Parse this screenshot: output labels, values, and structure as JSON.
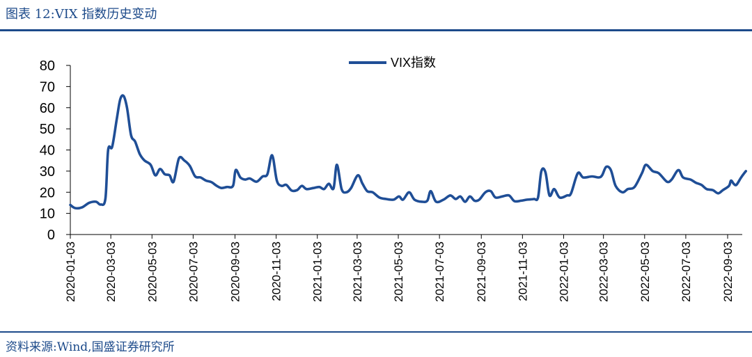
{
  "figure": {
    "title": "图表 12:VIX 指数历史变动",
    "source": "资料来源:Wind,国盛证券研究所"
  },
  "colors": {
    "accent": "#1c4a8a",
    "series": "#1f4e96"
  },
  "chart_data": {
    "type": "line",
    "title": "",
    "xlabel": "",
    "ylabel": "",
    "ylim": [
      0,
      80
    ],
    "yticks": [
      0,
      10,
      20,
      30,
      40,
      50,
      60,
      70,
      80
    ],
    "xticks": [
      "2020-01-03",
      "2020-03-03",
      "2020-05-03",
      "2020-07-03",
      "2020-09-03",
      "2020-11-03",
      "2021-01-03",
      "2021-03-03",
      "2021-05-03",
      "2021-07-03",
      "2021-09-03",
      "2021-11-03",
      "2022-01-03",
      "2022-03-03",
      "2022-05-03",
      "2022-07-03",
      "2022-09-03"
    ],
    "grid": false,
    "legend_position": "top-center",
    "series": [
      {
        "name": "VIX指数",
        "points": [
          [
            "2020-01-03",
            14.0
          ],
          [
            "2020-01-10",
            12.5
          ],
          [
            "2020-01-20",
            12.8
          ],
          [
            "2020-01-31",
            15.0
          ],
          [
            "2020-02-10",
            15.5
          ],
          [
            "2020-02-17",
            14.2
          ],
          [
            "2020-02-24",
            17.0
          ],
          [
            "2020-02-28",
            40.0
          ],
          [
            "2020-03-05",
            41.5
          ],
          [
            "2020-03-12",
            55.0
          ],
          [
            "2020-03-17",
            64.0
          ],
          [
            "2020-03-22",
            65.5
          ],
          [
            "2020-03-27",
            60.0
          ],
          [
            "2020-04-02",
            47.0
          ],
          [
            "2020-04-08",
            44.0
          ],
          [
            "2020-04-15",
            38.0
          ],
          [
            "2020-04-22",
            35.0
          ],
          [
            "2020-05-01",
            33.0
          ],
          [
            "2020-05-08",
            28.0
          ],
          [
            "2020-05-15",
            31.0
          ],
          [
            "2020-05-22",
            28.5
          ],
          [
            "2020-05-29",
            28.0
          ],
          [
            "2020-06-04",
            25.0
          ],
          [
            "2020-06-12",
            36.0
          ],
          [
            "2020-06-20",
            35.0
          ],
          [
            "2020-06-28",
            32.5
          ],
          [
            "2020-07-06",
            27.5
          ],
          [
            "2020-07-14",
            27.0
          ],
          [
            "2020-07-22",
            25.5
          ],
          [
            "2020-07-30",
            24.8
          ],
          [
            "2020-08-07",
            23.0
          ],
          [
            "2020-08-14",
            22.0
          ],
          [
            "2020-08-22",
            22.5
          ],
          [
            "2020-08-31",
            23.0
          ],
          [
            "2020-09-04",
            30.5
          ],
          [
            "2020-09-11",
            27.0
          ],
          [
            "2020-09-18",
            26.0
          ],
          [
            "2020-09-25",
            26.5
          ],
          [
            "2020-10-05",
            25.0
          ],
          [
            "2020-10-14",
            27.5
          ],
          [
            "2020-10-21",
            28.5
          ],
          [
            "2020-10-28",
            37.5
          ],
          [
            "2020-11-04",
            25.5
          ],
          [
            "2020-11-11",
            23.0
          ],
          [
            "2020-11-18",
            23.5
          ],
          [
            "2020-11-26",
            20.8
          ],
          [
            "2020-12-04",
            21.0
          ],
          [
            "2020-12-11",
            23.0
          ],
          [
            "2020-12-18",
            21.5
          ],
          [
            "2020-12-28",
            22.0
          ],
          [
            "2021-01-06",
            22.5
          ],
          [
            "2021-01-13",
            21.5
          ],
          [
            "2021-01-20",
            24.0
          ],
          [
            "2021-01-27",
            21.8
          ],
          [
            "2021-02-01",
            33.0
          ],
          [
            "2021-02-08",
            21.5
          ],
          [
            "2021-02-15",
            20.0
          ],
          [
            "2021-02-22",
            22.0
          ],
          [
            "2021-03-04",
            28.0
          ],
          [
            "2021-03-11",
            24.0
          ],
          [
            "2021-03-18",
            20.5
          ],
          [
            "2021-03-26",
            20.0
          ],
          [
            "2021-04-05",
            17.5
          ],
          [
            "2021-04-15",
            16.8
          ],
          [
            "2021-04-26",
            16.5
          ],
          [
            "2021-05-04",
            18.0
          ],
          [
            "2021-05-10",
            16.5
          ],
          [
            "2021-05-19",
            20.0
          ],
          [
            "2021-05-27",
            16.5
          ],
          [
            "2021-06-07",
            15.5
          ],
          [
            "2021-06-15",
            16.0
          ],
          [
            "2021-06-20",
            20.5
          ],
          [
            "2021-06-28",
            15.5
          ],
          [
            "2021-07-09",
            16.5
          ],
          [
            "2021-07-19",
            18.5
          ],
          [
            "2021-07-27",
            16.8
          ],
          [
            "2021-08-03",
            18.0
          ],
          [
            "2021-08-10",
            15.5
          ],
          [
            "2021-08-17",
            18.0
          ],
          [
            "2021-08-24",
            16.0
          ],
          [
            "2021-08-31",
            16.5
          ],
          [
            "2021-09-09",
            20.0
          ],
          [
            "2021-09-17",
            20.5
          ],
          [
            "2021-09-24",
            17.5
          ],
          [
            "2021-10-04",
            18.0
          ],
          [
            "2021-10-14",
            18.5
          ],
          [
            "2021-10-22",
            15.8
          ],
          [
            "2021-11-01",
            16.0
          ],
          [
            "2021-11-10",
            16.5
          ],
          [
            "2021-11-20",
            16.8
          ],
          [
            "2021-11-26",
            17.5
          ],
          [
            "2021-12-01",
            30.0
          ],
          [
            "2021-12-07",
            29.5
          ],
          [
            "2021-12-13",
            18.5
          ],
          [
            "2021-12-20",
            21.5
          ],
          [
            "2021-12-28",
            17.5
          ],
          [
            "2022-01-08",
            18.5
          ],
          [
            "2022-01-14",
            19.5
          ],
          [
            "2022-01-24",
            29.0
          ],
          [
            "2022-02-01",
            27.0
          ],
          [
            "2022-02-14",
            27.5
          ],
          [
            "2022-02-24",
            27.0
          ],
          [
            "2022-03-01",
            28.0
          ],
          [
            "2022-03-07",
            32.0
          ],
          [
            "2022-03-14",
            30.5
          ],
          [
            "2022-03-21",
            23.0
          ],
          [
            "2022-03-31",
            20.0
          ],
          [
            "2022-04-08",
            21.5
          ],
          [
            "2022-04-18",
            22.5
          ],
          [
            "2022-04-29",
            29.0
          ],
          [
            "2022-05-05",
            33.0
          ],
          [
            "2022-05-15",
            30.0
          ],
          [
            "2022-05-24",
            29.0
          ],
          [
            "2022-06-05",
            25.0
          ],
          [
            "2022-06-12",
            26.0
          ],
          [
            "2022-06-22",
            30.5
          ],
          [
            "2022-06-29",
            27.0
          ],
          [
            "2022-07-10",
            26.0
          ],
          [
            "2022-07-18",
            24.5
          ],
          [
            "2022-07-26",
            23.5
          ],
          [
            "2022-08-03",
            21.5
          ],
          [
            "2022-08-12",
            21.0
          ],
          [
            "2022-08-20",
            19.5
          ],
          [
            "2022-08-27",
            21.0
          ],
          [
            "2022-09-05",
            23.0
          ],
          [
            "2022-09-08",
            25.5
          ],
          [
            "2022-09-12",
            24.0
          ],
          [
            "2022-09-16",
            23.5
          ],
          [
            "2022-09-23",
            27.0
          ],
          [
            "2022-09-30",
            30.0
          ]
        ]
      }
    ]
  }
}
